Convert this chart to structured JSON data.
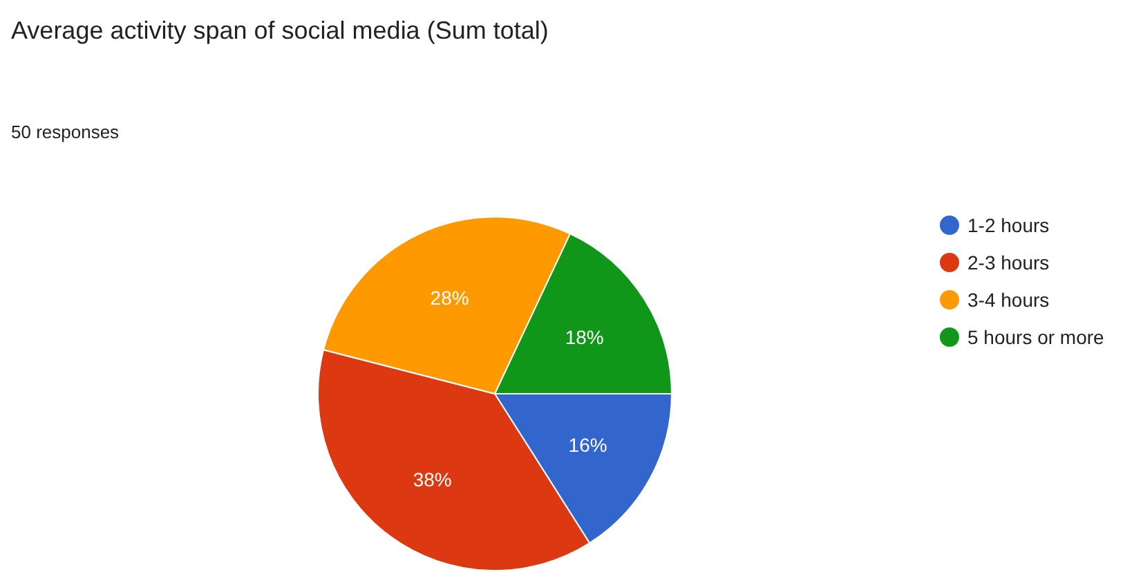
{
  "chart_data": {
    "type": "pie",
    "title": "Average activity span of social media (Sum total)",
    "subtitle": "50 responses",
    "categories": [
      "1-2 hours",
      "2-3 hours",
      "3-4 hours",
      "5 hours or more"
    ],
    "values": [
      16,
      38,
      28,
      18
    ],
    "colors": [
      "#3366cc",
      "#dc3912",
      "#ff9900",
      "#109618"
    ],
    "value_labels": [
      "16%",
      "38%",
      "28%",
      "18%"
    ],
    "legend": "top right"
  }
}
